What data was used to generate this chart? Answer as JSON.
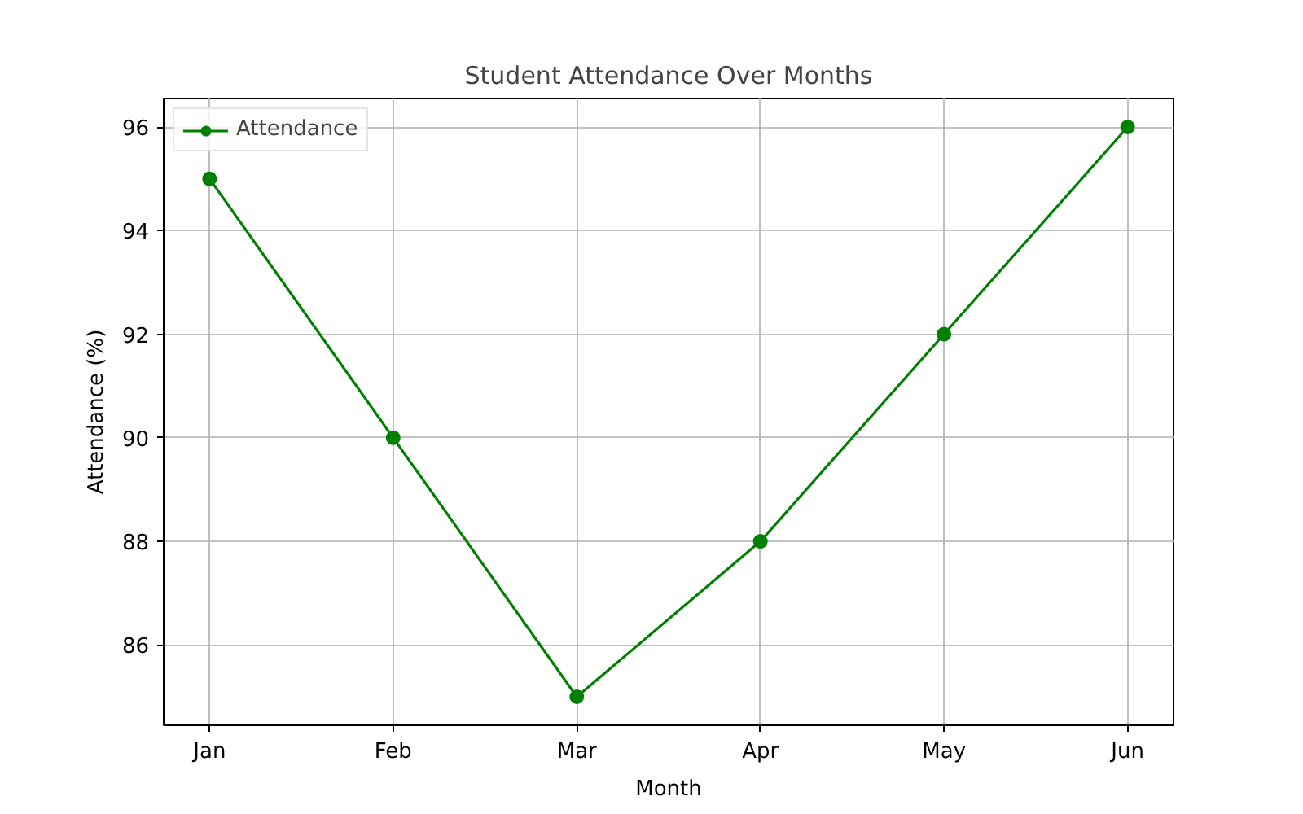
{
  "chart_data": {
    "type": "line",
    "title": "Student Attendance Over Months",
    "xlabel": "Month",
    "ylabel": "Attendance (%)",
    "categories": [
      "Jan",
      "Feb",
      "Mar",
      "Apr",
      "May",
      "Jun"
    ],
    "series": [
      {
        "name": "Attendance",
        "color": "#008000",
        "values": [
          95,
          90,
          85,
          88,
          92,
          96
        ]
      }
    ],
    "ylim": [
      84.45,
      96.55
    ],
    "yticks": [
      86,
      88,
      90,
      92,
      94,
      96
    ],
    "grid": true,
    "legend": "top left",
    "marker": "circle",
    "line_style": "solid"
  }
}
